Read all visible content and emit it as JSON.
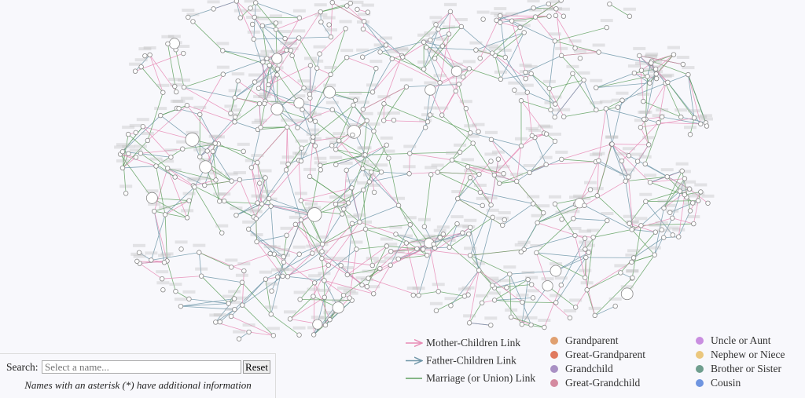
{
  "legend": {
    "links": [
      {
        "label": "Mother-Children Link",
        "color": "#e88bb5",
        "arrow": true
      },
      {
        "label": "Father-Children Link",
        "color": "#6f96a8",
        "arrow": true
      },
      {
        "label": "Marriage (or Union) Link",
        "color": "#5fa05f",
        "arrow": false
      }
    ],
    "relations": [
      {
        "label": "Grandparent",
        "color": "#e0a070"
      },
      {
        "label": "Great-Grandparent",
        "color": "#e07a5f"
      },
      {
        "label": "Grandchild",
        "color": "#a990c4"
      },
      {
        "label": "Great-Grandchild",
        "color": "#d48aa0"
      },
      {
        "label": "Uncle or Aunt",
        "color": "#c98ee0"
      },
      {
        "label": "Nephew or Niece",
        "color": "#ebc77d"
      },
      {
        "label": "Brother or Sister",
        "color": "#6f9e8e"
      },
      {
        "label": "Cousin",
        "color": "#6f95e0"
      }
    ]
  },
  "search": {
    "label": "Search:",
    "placeholder": "Select a name...",
    "button": "Reset",
    "note": "Names with an asterisk (*) have additional information"
  }
}
